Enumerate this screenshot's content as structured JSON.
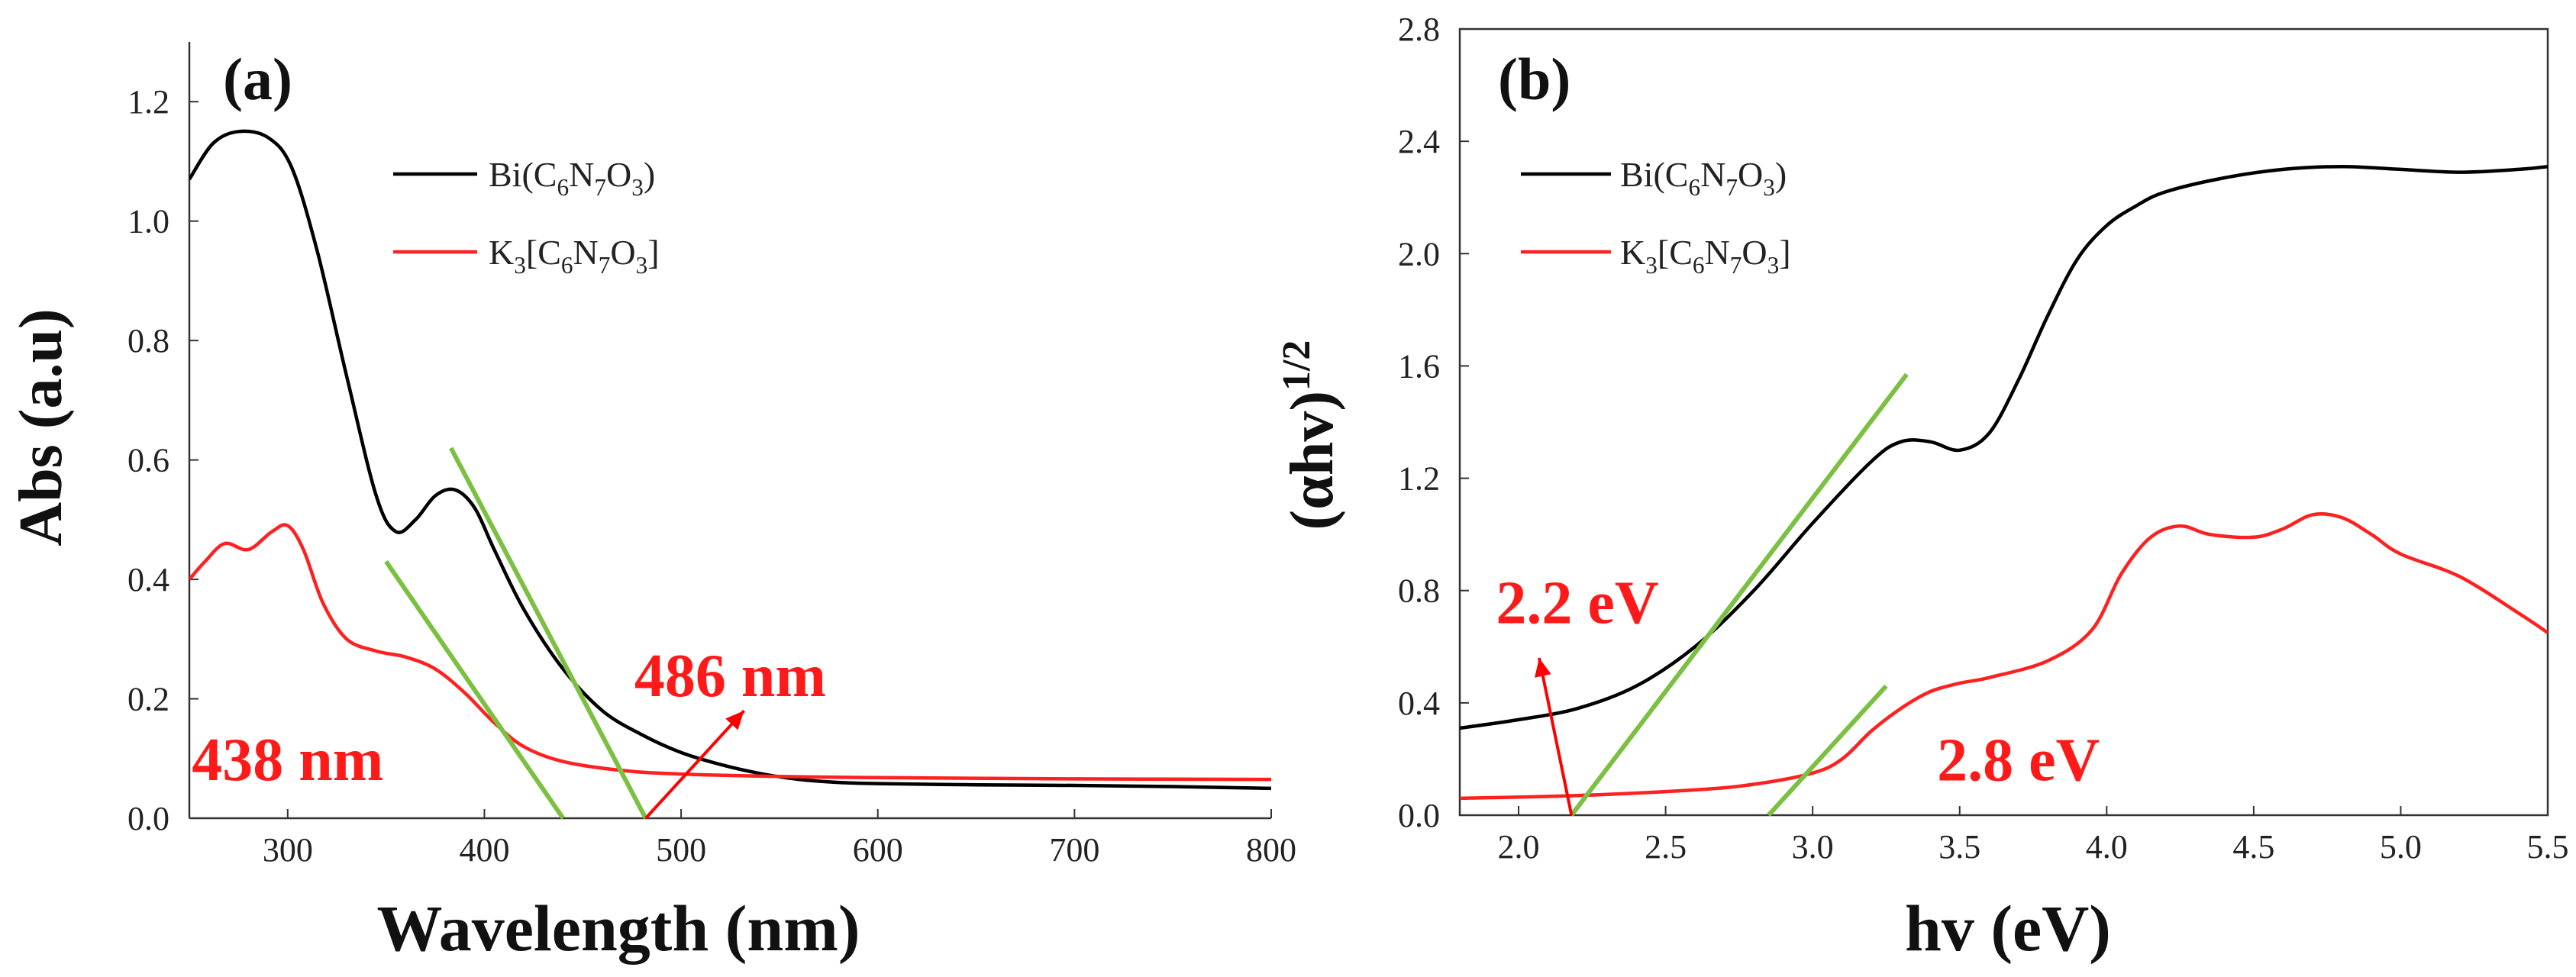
{
  "chart_data": [
    {
      "id": "a",
      "type": "line",
      "panel_label": "(a)",
      "xlabel": "Wavelength (nm)",
      "ylabel": "Abs (a.u)",
      "xlim": [
        250,
        800
      ],
      "ylim": [
        0,
        1.3
      ],
      "xticks": [
        300,
        400,
        500,
        600,
        700,
        800
      ],
      "xtick_labels": [
        "300",
        "400",
        "500",
        "600",
        "700",
        "800"
      ],
      "yticks": [
        0,
        0.2,
        0.4,
        0.6,
        0.8,
        1.0,
        1.2
      ],
      "ytick_labels": [
        "0.0",
        "0.2",
        "0.4",
        "0.6",
        "0.8",
        "1.0",
        "1.2"
      ],
      "legend": {
        "placement": "top-center",
        "entries": [
          {
            "series": "Bi",
            "label": "Bi(C",
            "sub": [
              "6",
              "7",
              "3"
            ],
            "mid": [
              "N",
              "O"
            ],
            "tail": ")"
          },
          {
            "series": "K",
            "label": "K",
            "first_sub": "3",
            "open": "[C",
            "sub": [
              "6",
              "7",
              "3"
            ],
            "mid": [
              "N",
              "O"
            ],
            "tail": "]"
          }
        ]
      },
      "series": [
        {
          "name": "Bi(C6N7O3)",
          "color": "#000000",
          "x": [
            250,
            262,
            275,
            290,
            302,
            315,
            330,
            345,
            355,
            365,
            375,
            385,
            395,
            405,
            420,
            440,
            460,
            480,
            500,
            520,
            540,
            560,
            580,
            600,
            650,
            700,
            750,
            800
          ],
          "y": [
            1.07,
            1.13,
            1.15,
            1.14,
            1.09,
            0.95,
            0.74,
            0.54,
            0.48,
            0.5,
            0.54,
            0.55,
            0.52,
            0.45,
            0.35,
            0.25,
            0.18,
            0.14,
            0.11,
            0.09,
            0.075,
            0.065,
            0.06,
            0.058,
            0.056,
            0.055,
            0.053,
            0.05
          ]
        },
        {
          "name": "K3[C6N7O3]",
          "color": "#ff2020",
          "x": [
            250,
            258,
            268,
            280,
            292,
            300,
            308,
            318,
            330,
            345,
            360,
            375,
            390,
            405,
            420,
            440,
            470,
            500,
            550,
            600,
            700,
            800
          ],
          "y": [
            0.4,
            0.43,
            0.46,
            0.45,
            0.48,
            0.49,
            0.45,
            0.36,
            0.3,
            0.28,
            0.27,
            0.25,
            0.21,
            0.16,
            0.12,
            0.095,
            0.08,
            0.074,
            0.07,
            0.068,
            0.066,
            0.065
          ]
        }
      ],
      "tangents": [
        {
          "x": [
            350,
            440
          ],
          "y": [
            0.43,
            0.0
          ],
          "color": "#7cc042"
        },
        {
          "x": [
            383,
            482
          ],
          "y": [
            0.62,
            0.0
          ],
          "color": "#7cc042"
        }
      ],
      "annotations": [
        {
          "text": "438 nm",
          "x": 300,
          "y": 0.1
        },
        {
          "text": "486 nm",
          "x": 525,
          "y": 0.24
        }
      ],
      "arrows": [
        {
          "from": [
            482,
            0.0
          ],
          "to": [
            532,
            0.18
          ],
          "color": "#ff0000"
        }
      ]
    },
    {
      "id": "b",
      "type": "line",
      "panel_label": "(b)",
      "xlabel": "hv (eV)",
      "ylabel": "(αhv)",
      "ylabel_sup": "1/2",
      "xlim": [
        1.8,
        5.5
      ],
      "ylim": [
        0,
        2.8
      ],
      "xticks": [
        2.0,
        2.5,
        3.0,
        3.5,
        4.0,
        4.5,
        5.0,
        5.5
      ],
      "xtick_labels": [
        "2.0",
        "2.5",
        "3.0",
        "3.5",
        "4.0",
        "4.5",
        "5.0",
        "5.5"
      ],
      "yticks": [
        0,
        0.4,
        0.8,
        1.2,
        1.6,
        2.0,
        2.4,
        2.8
      ],
      "ytick_labels": [
        "0.0",
        "0.4",
        "0.8",
        "1.2",
        "1.6",
        "2.0",
        "2.4",
        "2.8"
      ],
      "legend": {
        "placement": "top-left",
        "entries": [
          {
            "series": "Bi",
            "label": "Bi(C",
            "sub": [
              "6",
              "7",
              "3"
            ],
            "mid": [
              "N",
              "O"
            ],
            "tail": ")"
          },
          {
            "series": "K",
            "label": "K",
            "first_sub": "3",
            "open": "[C",
            "sub": [
              "6",
              "7",
              "3"
            ],
            "mid": [
              "N",
              "O"
            ],
            "tail": "]"
          }
        ]
      },
      "series": [
        {
          "name": "Bi(C6N7O3)",
          "color": "#000000",
          "x": [
            1.8,
            2.0,
            2.2,
            2.4,
            2.6,
            2.8,
            3.0,
            3.2,
            3.3,
            3.4,
            3.5,
            3.6,
            3.7,
            3.8,
            3.9,
            4.0,
            4.1,
            4.2,
            4.4,
            4.6,
            4.8,
            5.0,
            5.2,
            5.4,
            5.5
          ],
          "y": [
            0.31,
            0.34,
            0.38,
            0.46,
            0.6,
            0.8,
            1.04,
            1.26,
            1.33,
            1.33,
            1.3,
            1.36,
            1.55,
            1.78,
            1.98,
            2.1,
            2.17,
            2.22,
            2.27,
            2.3,
            2.31,
            2.3,
            2.29,
            2.3,
            2.31
          ]
        },
        {
          "name": "K3[C6N7O3]",
          "color": "#ff2020",
          "x": [
            1.8,
            2.2,
            2.6,
            2.8,
            3.0,
            3.1,
            3.2,
            3.3,
            3.4,
            3.5,
            3.6,
            3.8,
            3.95,
            4.05,
            4.15,
            4.25,
            4.35,
            4.5,
            4.6,
            4.7,
            4.8,
            4.9,
            5.0,
            5.2,
            5.4,
            5.5
          ],
          "y": [
            0.06,
            0.07,
            0.09,
            0.11,
            0.15,
            0.2,
            0.3,
            0.38,
            0.44,
            0.47,
            0.49,
            0.55,
            0.66,
            0.86,
            0.99,
            1.03,
            1.0,
            0.99,
            1.02,
            1.07,
            1.06,
            1.0,
            0.93,
            0.85,
            0.72,
            0.65
          ]
        }
      ],
      "tangents": [
        {
          "x": [
            2.18,
            3.32
          ],
          "y": [
            0.0,
            1.57
          ],
          "color": "#7cc042"
        },
        {
          "x": [
            2.85,
            3.25
          ],
          "y": [
            0.0,
            0.46
          ],
          "color": "#7cc042"
        }
      ],
      "annotations": [
        {
          "text": "2.2 eV",
          "x": 2.2,
          "y": 0.76
        },
        {
          "text": "2.8 eV",
          "x": 3.7,
          "y": 0.2
        }
      ],
      "arrows": [
        {
          "from": [
            2.18,
            0.0
          ],
          "to": [
            2.07,
            0.56
          ],
          "color": "#ff0000"
        }
      ]
    }
  ]
}
